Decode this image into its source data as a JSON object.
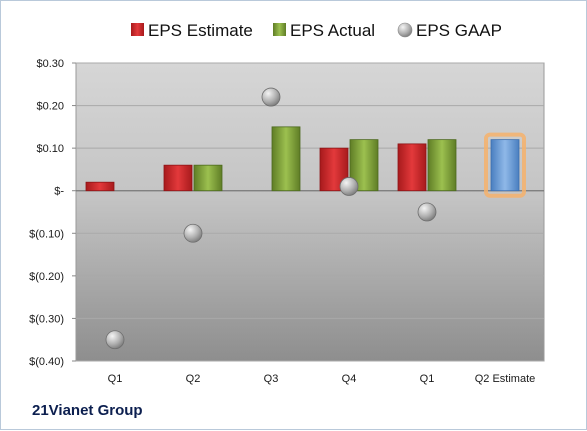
{
  "company_name": "21Vianet Group",
  "colors": {
    "estimate": "#d8282b",
    "actual": "#86a83c",
    "gaap": "#b8b8b8",
    "forecast": "#6fa0d8",
    "forecast_glow": "#f6b26b"
  },
  "chart_data": {
    "type": "bar",
    "categories": [
      "Q1",
      "Q2",
      "Q3",
      "Q4",
      "Q1",
      "Q2 Estimate"
    ],
    "series": [
      {
        "name": "EPS Estimate",
        "values": [
          0.02,
          0.06,
          null,
          0.1,
          0.11,
          null
        ]
      },
      {
        "name": "EPS Actual",
        "values": [
          null,
          0.06,
          0.15,
          0.12,
          0.12,
          0.12
        ]
      },
      {
        "name": "EPS GAAP",
        "values": [
          -0.35,
          -0.1,
          0.22,
          0.01,
          -0.05,
          null
        ]
      }
    ],
    "forecast_index": 5,
    "y_ticks": [
      0.3,
      0.2,
      0.1,
      0,
      -0.1,
      -0.2,
      -0.3,
      -0.4
    ],
    "y_tick_labels": [
      "$0.30",
      "$0.20",
      "$0.10",
      "$-",
      "$(0.10)",
      "$(0.20)",
      "$(0.30)",
      "$(0.40)"
    ],
    "ylim": [
      -0.4,
      0.3
    ],
    "grid": true,
    "legend": "top"
  }
}
